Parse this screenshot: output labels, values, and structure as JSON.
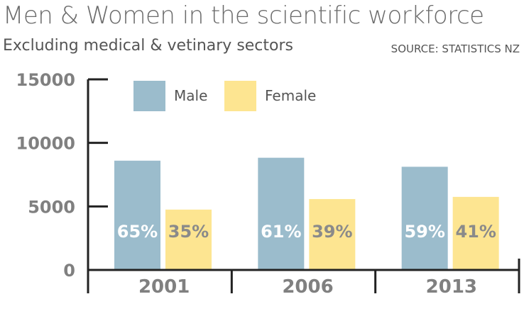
{
  "chart_data": {
    "type": "bar",
    "title": "Men & Women in the scientific workforce",
    "subtitle": "Excluding medical & vetinary sectors",
    "source": "SOURCE: STATISTICS NZ",
    "categories": [
      "2001",
      "2006",
      "2013"
    ],
    "series": [
      {
        "name": "Male",
        "color": "#9bbccc",
        "values": [
          8600,
          8830,
          8120
        ],
        "labels": [
          "65%",
          "61%",
          "59%"
        ],
        "label_color": "#ffffff"
      },
      {
        "name": "Female",
        "color": "#fde591",
        "values": [
          4750,
          5580,
          5750
        ],
        "labels": [
          "35%",
          "39%",
          "41%"
        ],
        "label_color": "#8a8a8a"
      }
    ],
    "yticks": [
      "0",
      "5000",
      "10000",
      "15000"
    ],
    "ylim": [
      0,
      15000
    ],
    "xlabel": "",
    "ylabel": "",
    "legend": "top-left",
    "grid": false
  }
}
